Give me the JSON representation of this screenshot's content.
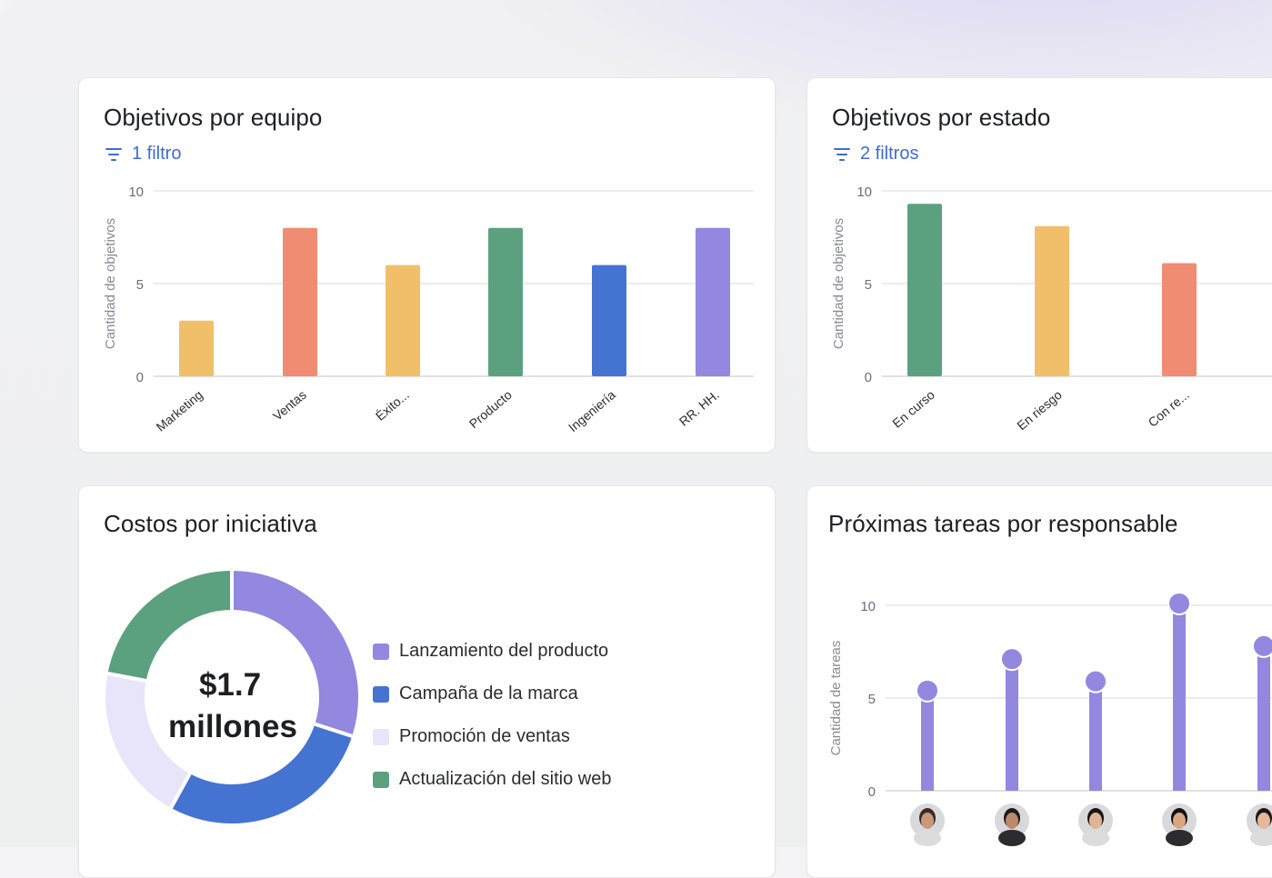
{
  "cards": {
    "team": {
      "title": "Objetivos por equipo",
      "filter_label": "1 filtro",
      "filter_icon": "filter-icon"
    },
    "status": {
      "title": "Objetivos por estado",
      "filter_label": "2 filtros",
      "filter_icon": "filter-icon"
    },
    "costs": {
      "title": "Costos por iniciativa",
      "center_line1": "$1.7",
      "center_line2": "millones"
    },
    "tasks": {
      "title": "Próximas tareas por responsable"
    }
  },
  "colors": {
    "yellow": "#f1bf6a",
    "coral": "#f08c72",
    "green": "#5ba180",
    "blue": "#4573d2",
    "purple": "#9288e0",
    "lavender": "#e8e5fa",
    "filter_blue": "#3f6ad8"
  },
  "chart_data": [
    {
      "type": "bar",
      "title": "Objetivos por equipo",
      "ylabel": "Cantidad de objetivos",
      "ylim": [
        0,
        10
      ],
      "yticks": [
        0,
        5,
        10
      ],
      "grid": true,
      "categories": [
        "Marketing",
        "Ventas",
        "Éxito...",
        "Producto",
        "Ingeniería",
        "RR. HH."
      ],
      "values": [
        3,
        8,
        6,
        8,
        6,
        8
      ],
      "bar_colors": [
        "#f1bf6a",
        "#f08c72",
        "#f1bf6a",
        "#5ba180",
        "#4573d2",
        "#9288e0"
      ]
    },
    {
      "type": "bar",
      "title": "Objetivos por estado",
      "ylabel": "Cantidad de objetivos",
      "ylim": [
        0,
        10
      ],
      "yticks": [
        0,
        5,
        10
      ],
      "grid": true,
      "categories": [
        "En curso",
        "En riesgo",
        "Con re..."
      ],
      "values": [
        9.3,
        8.1,
        6.1
      ],
      "bar_colors": [
        "#5ba180",
        "#f1bf6a",
        "#f08c72"
      ]
    },
    {
      "type": "pie",
      "title": "Costos por iniciativa",
      "categories": [
        "Lanzamiento del producto",
        "Campaña de la marca",
        "Promoción de ventas",
        "Actualización del sitio web"
      ],
      "values": [
        30,
        28,
        20,
        22
      ],
      "colors": [
        "#9288e0",
        "#4573d2",
        "#e8e5fa",
        "#5ba180"
      ],
      "total_label": "$1.7 millones",
      "legend": "right"
    },
    {
      "type": "bar",
      "title": "Próximas tareas por responsable",
      "ylabel": "Cantidad de tareas",
      "ylim": [
        0,
        10
      ],
      "yticks": [
        0,
        5,
        10
      ],
      "grid": true,
      "categories": [
        "avatar-1",
        "avatar-2",
        "avatar-3",
        "avatar-4",
        "avatar-5"
      ],
      "values": [
        5.4,
        7.1,
        5.9,
        10.1,
        7.8
      ],
      "bar_color": "#9288e0"
    }
  ]
}
